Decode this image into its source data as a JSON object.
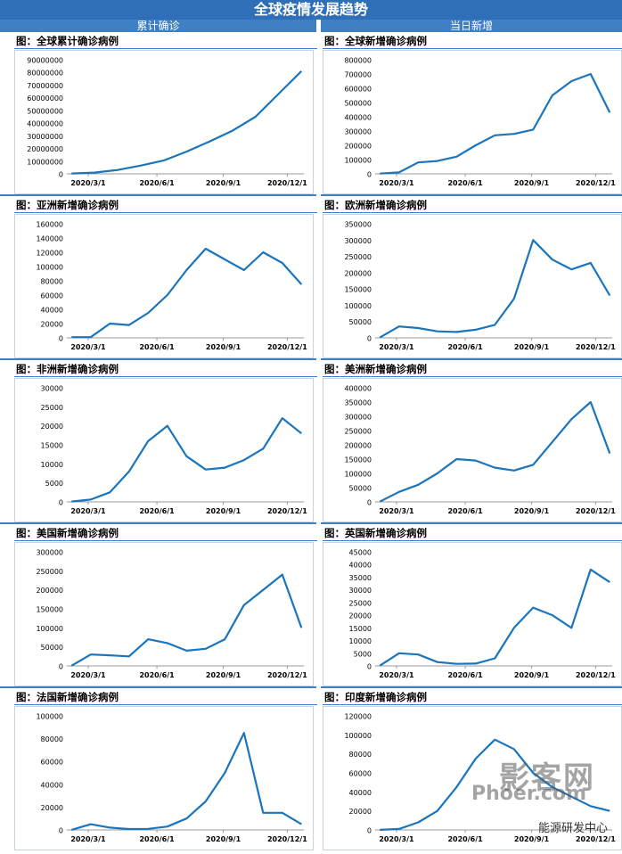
{
  "header": {
    "title": "全球疫情发展趋势",
    "left_section": "累计确诊",
    "right_section": "当日新增"
  },
  "watermark": {
    "line1": "影客网",
    "line2": "Phoer.com",
    "line3": "能源研发中心"
  },
  "colors": {
    "line": "#1a75bc",
    "banner": "#2f6fb8"
  },
  "chart_data": [
    {
      "id": "global-cum",
      "type": "line",
      "title": "图：全球累计确诊病例",
      "ylim": [
        0,
        90000000
      ],
      "yticks": [
        0,
        10000000,
        20000000,
        30000000,
        40000000,
        50000000,
        60000000,
        70000000,
        80000000,
        90000000
      ],
      "xticks": [
        "2020/3/1",
        "2020/6/1",
        "2020/9/1",
        "2020/12/1"
      ],
      "series": [
        {
          "values": [
            300000,
            1000000,
            3000000,
            6500000,
            10500000,
            17500000,
            25500000,
            34000000,
            45000000,
            63000000,
            81000000
          ]
        }
      ]
    },
    {
      "id": "global-new",
      "type": "line",
      "title": "图：全球新增确诊病例",
      "ylim": [
        0,
        800000
      ],
      "yticks": [
        0,
        100000,
        200000,
        300000,
        400000,
        500000,
        600000,
        700000,
        800000
      ],
      "xticks": [
        "2020/3/1",
        "2020/6/1",
        "2020/9/1",
        "2020/12/1"
      ],
      "series": [
        {
          "values": [
            2000,
            10000,
            80000,
            90000,
            120000,
            200000,
            270000,
            280000,
            310000,
            550000,
            650000,
            700000,
            430000
          ]
        }
      ]
    },
    {
      "id": "asia-new",
      "type": "line",
      "title": "图：亚洲新增确诊病例",
      "ylim": [
        0,
        160000
      ],
      "yticks": [
        0,
        20000,
        40000,
        60000,
        80000,
        100000,
        120000,
        140000,
        160000
      ],
      "xticks": [
        "2020/3/1",
        "2020/6/1",
        "2020/9/1",
        "2020/12/1"
      ],
      "series": [
        {
          "values": [
            1000,
            1000,
            20000,
            18000,
            35000,
            60000,
            95000,
            125000,
            110000,
            95000,
            120000,
            105000,
            75000
          ]
        }
      ]
    },
    {
      "id": "europe-new",
      "type": "line",
      "title": "图：欧洲新增确诊病例",
      "ylim": [
        0,
        350000
      ],
      "yticks": [
        0,
        50000,
        100000,
        150000,
        200000,
        250000,
        300000,
        350000
      ],
      "xticks": [
        "2020/3/1",
        "2020/6/1",
        "2020/9/1",
        "2020/12/1"
      ],
      "series": [
        {
          "values": [
            1000,
            35000,
            30000,
            20000,
            18000,
            25000,
            40000,
            120000,
            300000,
            240000,
            210000,
            230000,
            130000
          ]
        }
      ]
    },
    {
      "id": "africa-new",
      "type": "line",
      "title": "图：非洲新增确诊病例",
      "ylim": [
        0,
        30000
      ],
      "yticks": [
        0,
        5000,
        10000,
        15000,
        20000,
        25000,
        30000
      ],
      "xticks": [
        "2020/3/1",
        "2020/6/1",
        "2020/9/1",
        "2020/12/1"
      ],
      "series": [
        {
          "values": [
            100,
            600,
            2500,
            8000,
            16000,
            20000,
            12000,
            8500,
            9000,
            11000,
            14000,
            22000,
            18000
          ]
        }
      ]
    },
    {
      "id": "americas-new",
      "type": "line",
      "title": "图：美洲新增确诊病例",
      "ylim": [
        0,
        400000
      ],
      "yticks": [
        0,
        50000,
        100000,
        150000,
        200000,
        250000,
        300000,
        350000,
        400000
      ],
      "xticks": [
        "2020/3/1",
        "2020/6/1",
        "2020/9/1",
        "2020/12/1"
      ],
      "series": [
        {
          "values": [
            1000,
            35000,
            60000,
            100000,
            150000,
            145000,
            120000,
            110000,
            130000,
            210000,
            290000,
            350000,
            170000
          ]
        }
      ]
    },
    {
      "id": "us-new",
      "type": "line",
      "title": "图：美国新增确诊病例",
      "ylim": [
        0,
        300000
      ],
      "yticks": [
        0,
        50000,
        100000,
        150000,
        200000,
        250000,
        300000
      ],
      "xticks": [
        "2020/3/1",
        "2020/6/1",
        "2020/9/1",
        "2020/12/1"
      ],
      "series": [
        {
          "values": [
            500,
            30000,
            28000,
            25000,
            70000,
            60000,
            40000,
            45000,
            70000,
            160000,
            200000,
            240000,
            100000
          ]
        }
      ]
    },
    {
      "id": "uk-new",
      "type": "line",
      "title": "图：英国新增确诊病例",
      "ylim": [
        0,
        45000
      ],
      "yticks": [
        0,
        5000,
        10000,
        15000,
        20000,
        25000,
        30000,
        35000,
        40000,
        45000
      ],
      "xticks": [
        "2020/3/1",
        "2020/6/1",
        "2020/9/1",
        "2020/12/1"
      ],
      "series": [
        {
          "values": [
            100,
            5000,
            4500,
            1500,
            800,
            900,
            3000,
            15000,
            23000,
            20000,
            15000,
            38000,
            33000
          ]
        }
      ]
    },
    {
      "id": "france-new",
      "type": "line",
      "title": "图：法国新增确诊病例",
      "ylim": [
        0,
        100000
      ],
      "yticks": [
        0,
        20000,
        40000,
        60000,
        80000,
        100000
      ],
      "xticks": [
        "2020/3/1",
        "2020/6/1",
        "2020/9/1",
        "2020/12/1"
      ],
      "series": [
        {
          "values": [
            100,
            5000,
            2000,
            800,
            900,
            3000,
            10000,
            25000,
            50000,
            85000,
            15000,
            15000,
            5000
          ]
        }
      ]
    },
    {
      "id": "india-new",
      "type": "line",
      "title": "图：印度新增确诊病例",
      "ylim": [
        0,
        120000
      ],
      "yticks": [
        0,
        20000,
        40000,
        60000,
        80000,
        100000,
        120000
      ],
      "xticks": [
        "2020/3/1",
        "2020/6/1",
        "2020/9/1",
        "2020/12/1"
      ],
      "series": [
        {
          "values": [
            100,
            1000,
            8000,
            20000,
            45000,
            75000,
            95000,
            85000,
            60000,
            45000,
            35000,
            25000,
            20000
          ]
        }
      ]
    }
  ]
}
